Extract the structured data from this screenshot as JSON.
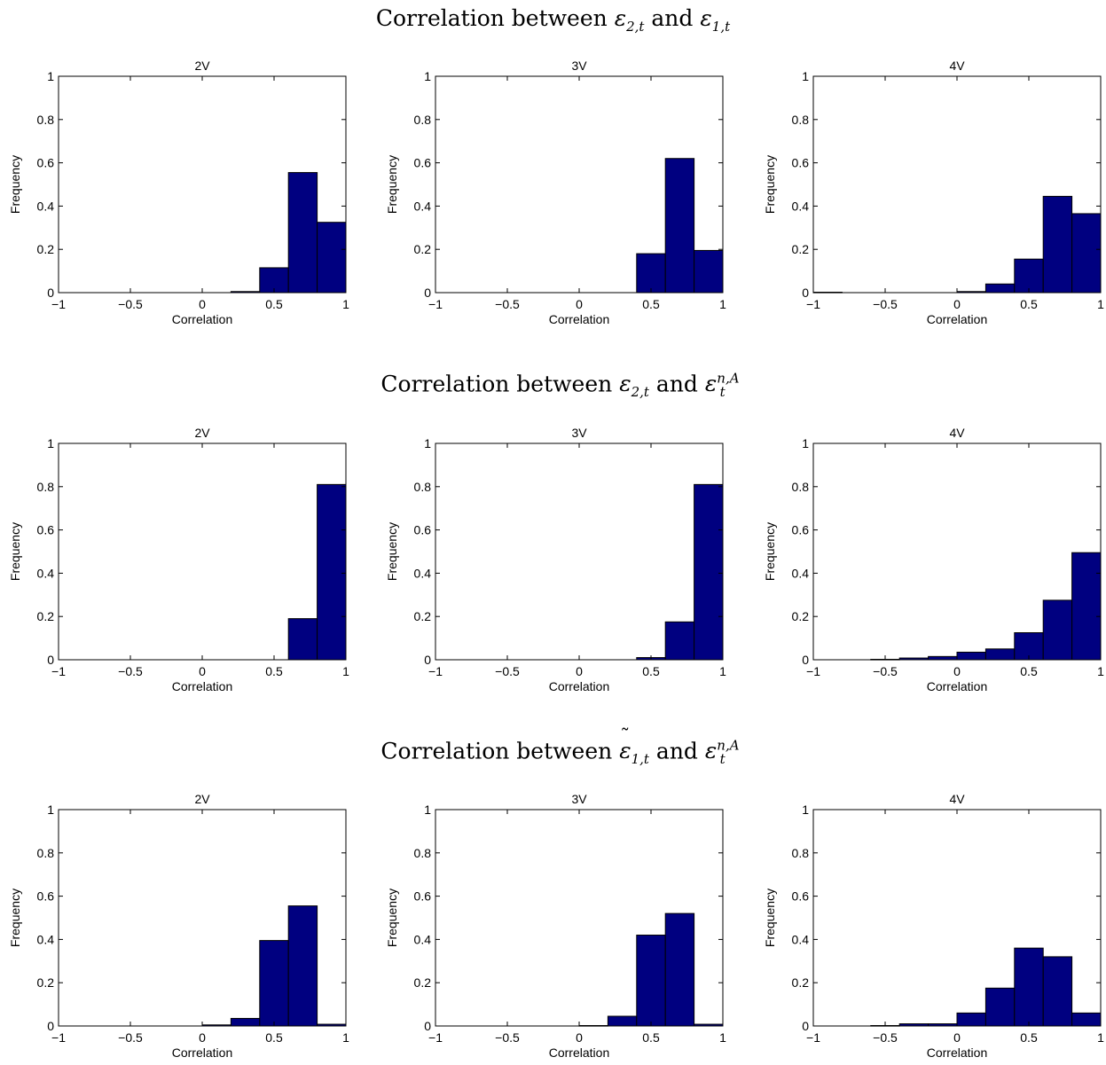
{
  "figure": {
    "rows": [
      {
        "title": {
          "prefix": "Correlation between ",
          "a": "ε",
          "a_sub": "2,t",
          "a_sup": "",
          "a_tilde": false,
          "conj": " and ",
          "b": "ε",
          "b_sub": "1,t",
          "b_sup": "",
          "b_tilde": true
        }
      },
      {
        "title": {
          "prefix": "Correlation between ",
          "a": "ε",
          "a_sub": "2,t",
          "a_sup": "",
          "a_tilde": false,
          "conj": " and ",
          "b": "ε",
          "b_sub": "t",
          "b_sup": "n,A",
          "b_tilde": false
        }
      },
      {
        "title": {
          "prefix": "Correlation between ",
          "a": "ε",
          "a_sub": "1,t",
          "a_sup": "",
          "a_tilde": true,
          "conj": " and ",
          "b": "ε",
          "b_sub": "t",
          "b_sup": "n,A",
          "b_tilde": false
        }
      }
    ]
  },
  "chart_data": [
    {
      "type": "bar",
      "title": "2V",
      "xlabel": "Correlation",
      "ylabel": "Frequency",
      "xlim": [
        -1,
        1
      ],
      "ylim": [
        0,
        1
      ],
      "xticks": [
        "−1",
        "−0.5",
        "0",
        "0.5",
        "1"
      ],
      "yticks": [
        "0",
        "0.2",
        "0.4",
        "0.6",
        "0.8",
        "1"
      ],
      "bins": [
        [
          0.2,
          0.4
        ],
        [
          0.4,
          0.6
        ],
        [
          0.6,
          0.8
        ],
        [
          0.8,
          1.0
        ]
      ],
      "values": [
        0.005,
        0.115,
        0.555,
        0.325
      ],
      "bar_color": "#000080"
    },
    {
      "type": "bar",
      "title": "3V",
      "xlabel": "Correlation",
      "ylabel": "Frequency",
      "xlim": [
        -1,
        1
      ],
      "ylim": [
        0,
        1
      ],
      "xticks": [
        "−1",
        "−0.5",
        "0",
        "0.5",
        "1"
      ],
      "yticks": [
        "0",
        "0.2",
        "0.4",
        "0.6",
        "0.8",
        "1"
      ],
      "bins": [
        [
          0.4,
          0.6
        ],
        [
          0.6,
          0.8
        ],
        [
          0.8,
          1.0
        ]
      ],
      "values": [
        0.18,
        0.62,
        0.195
      ],
      "bar_color": "#000080"
    },
    {
      "type": "bar",
      "title": "4V",
      "xlabel": "Correlation",
      "ylabel": "Frequency",
      "xlim": [
        -1,
        1
      ],
      "ylim": [
        0,
        1
      ],
      "xticks": [
        "−1",
        "−0.5",
        "0",
        "0.5",
        "1"
      ],
      "yticks": [
        "0",
        "0.2",
        "0.4",
        "0.6",
        "0.8",
        "1"
      ],
      "bins": [
        [
          -1.0,
          -0.8
        ],
        [
          0.0,
          0.2
        ],
        [
          0.2,
          0.4
        ],
        [
          0.4,
          0.6
        ],
        [
          0.6,
          0.8
        ],
        [
          0.8,
          1.0
        ]
      ],
      "values": [
        0.002,
        0.005,
        0.04,
        0.155,
        0.445,
        0.365
      ],
      "bar_color": "#000080"
    },
    {
      "type": "bar",
      "title": "2V",
      "xlabel": "Correlation",
      "ylabel": "Frequency",
      "xlim": [
        -1,
        1
      ],
      "ylim": [
        0,
        1
      ],
      "xticks": [
        "−1",
        "−0.5",
        "0",
        "0.5",
        "1"
      ],
      "yticks": [
        "0",
        "0.2",
        "0.4",
        "0.6",
        "0.8",
        "1"
      ],
      "bins": [
        [
          0.6,
          0.8
        ],
        [
          0.8,
          1.0
        ]
      ],
      "values": [
        0.19,
        0.81
      ],
      "bar_color": "#000080"
    },
    {
      "type": "bar",
      "title": "3V",
      "xlabel": "Correlation",
      "ylabel": "Frequency",
      "xlim": [
        -1,
        1
      ],
      "ylim": [
        0,
        1
      ],
      "xticks": [
        "−1",
        "−0.5",
        "0",
        "0.5",
        "1"
      ],
      "yticks": [
        "0",
        "0.2",
        "0.4",
        "0.6",
        "0.8",
        "1"
      ],
      "bins": [
        [
          0.4,
          0.6
        ],
        [
          0.6,
          0.8
        ],
        [
          0.8,
          1.0
        ]
      ],
      "values": [
        0.01,
        0.175,
        0.81
      ],
      "bar_color": "#000080"
    },
    {
      "type": "bar",
      "title": "4V",
      "xlabel": "Correlation",
      "ylabel": "Frequency",
      "xlim": [
        -1,
        1
      ],
      "ylim": [
        0,
        1
      ],
      "xticks": [
        "−1",
        "−0.5",
        "0",
        "0.5",
        "1"
      ],
      "yticks": [
        "0",
        "0.2",
        "0.4",
        "0.6",
        "0.8",
        "1"
      ],
      "bins": [
        [
          -0.6,
          -0.4
        ],
        [
          -0.4,
          -0.2
        ],
        [
          -0.2,
          0.0
        ],
        [
          0.0,
          0.2
        ],
        [
          0.2,
          0.4
        ],
        [
          0.4,
          0.6
        ],
        [
          0.6,
          0.8
        ],
        [
          0.8,
          1.0
        ]
      ],
      "values": [
        0.002,
        0.008,
        0.015,
        0.035,
        0.05,
        0.125,
        0.275,
        0.495
      ],
      "bar_color": "#000080"
    },
    {
      "type": "bar",
      "title": "2V",
      "xlabel": "Correlation",
      "ylabel": "Frequency",
      "xlim": [
        -1,
        1
      ],
      "ylim": [
        0,
        1
      ],
      "xticks": [
        "−1",
        "−0.5",
        "0",
        "0.5",
        "1"
      ],
      "yticks": [
        "0",
        "0.2",
        "0.4",
        "0.6",
        "0.8",
        "1"
      ],
      "bins": [
        [
          0.0,
          0.2
        ],
        [
          0.2,
          0.4
        ],
        [
          0.4,
          0.6
        ],
        [
          0.6,
          0.8
        ],
        [
          0.8,
          1.0
        ]
      ],
      "values": [
        0.005,
        0.035,
        0.395,
        0.555,
        0.008
      ],
      "bar_color": "#000080"
    },
    {
      "type": "bar",
      "title": "3V",
      "xlabel": "Correlation",
      "ylabel": "Frequency",
      "xlim": [
        -1,
        1
      ],
      "ylim": [
        0,
        1
      ],
      "xticks": [
        "−1",
        "−0.5",
        "0",
        "0.5",
        "1"
      ],
      "yticks": [
        "0",
        "0.2",
        "0.4",
        "0.6",
        "0.8",
        "1"
      ],
      "bins": [
        [
          0.0,
          0.2
        ],
        [
          0.2,
          0.4
        ],
        [
          0.4,
          0.6
        ],
        [
          0.6,
          0.8
        ],
        [
          0.8,
          1.0
        ]
      ],
      "values": [
        0.002,
        0.045,
        0.42,
        0.52,
        0.008
      ],
      "bar_color": "#000080"
    },
    {
      "type": "bar",
      "title": "4V",
      "xlabel": "Correlation",
      "ylabel": "Frequency",
      "xlim": [
        -1,
        1
      ],
      "ylim": [
        0,
        1
      ],
      "xticks": [
        "−1",
        "−0.5",
        "0",
        "0.5",
        "1"
      ],
      "yticks": [
        "0",
        "0.2",
        "0.4",
        "0.6",
        "0.8",
        "1"
      ],
      "bins": [
        [
          -0.6,
          -0.4
        ],
        [
          -0.4,
          -0.2
        ],
        [
          -0.2,
          0.0
        ],
        [
          0.0,
          0.2
        ],
        [
          0.2,
          0.4
        ],
        [
          0.4,
          0.6
        ],
        [
          0.6,
          0.8
        ],
        [
          0.8,
          1.0
        ]
      ],
      "values": [
        0.002,
        0.01,
        0.01,
        0.06,
        0.175,
        0.36,
        0.32,
        0.06
      ],
      "bar_color": "#000080"
    }
  ]
}
